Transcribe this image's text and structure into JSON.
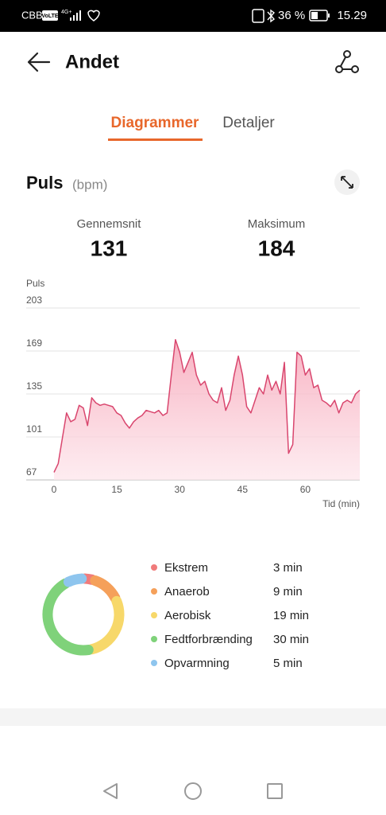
{
  "status_bar": {
    "carrier": "CBB",
    "volte": "VoLTE",
    "network": "4G+",
    "battery": "36 %",
    "time": "15.29"
  },
  "header": {
    "title": "Andet"
  },
  "tabs": [
    "Diagrammer",
    "Detaljer"
  ],
  "section": {
    "title": "Puls",
    "unit": "(bpm)"
  },
  "stats": [
    {
      "label": "Gennemsnit",
      "value": 131
    },
    {
      "label": "Maksimum",
      "value": 184
    }
  ],
  "chart_data": [
    {
      "type": "area",
      "y_label": "Puls",
      "x_label": "Tid (min)",
      "color": "#d9466e",
      "fill": "#f7a9bb",
      "x": [
        0,
        1,
        2,
        3,
        4,
        5,
        6,
        7,
        8,
        9,
        10,
        11,
        12,
        13,
        14,
        15,
        16,
        17,
        18,
        19,
        20,
        21,
        22,
        23,
        24,
        25,
        26,
        27,
        28,
        29,
        30,
        31,
        32,
        33,
        34,
        35,
        36,
        37,
        38,
        39,
        40,
        41,
        42,
        43,
        44,
        45,
        46,
        47,
        48,
        49,
        50,
        51,
        52,
        53,
        54,
        55,
        56,
        57,
        58,
        59,
        60,
        61,
        62,
        63,
        64,
        65,
        66,
        67,
        68,
        69,
        70,
        71,
        72,
        73
      ],
      "values": [
        73,
        80,
        100,
        120,
        113,
        115,
        126,
        124,
        110,
        132,
        128,
        126,
        127,
        126,
        125,
        120,
        118,
        112,
        108,
        113,
        116,
        118,
        122,
        121,
        120,
        122,
        118,
        120,
        150,
        178,
        168,
        152,
        160,
        168,
        150,
        142,
        145,
        135,
        130,
        128,
        140,
        122,
        130,
        150,
        165,
        150,
        125,
        120,
        130,
        140,
        135,
        150,
        138,
        145,
        135,
        160,
        88,
        95,
        168,
        165,
        150,
        155,
        140,
        142,
        130,
        128,
        125,
        130,
        120,
        128,
        130,
        128,
        135,
        138
      ],
      "xlim": [
        0,
        73
      ],
      "ylim": [
        67,
        203
      ],
      "xticks": [
        0,
        15,
        30,
        45,
        60
      ],
      "yticks": [
        67,
        101,
        135,
        169,
        203
      ],
      "grid": true
    },
    {
      "type": "donut",
      "categories": [
        "Ekstrem",
        "Anaerob",
        "Aerobisk",
        "Fedtforbrænding",
        "Opvarmning"
      ],
      "values": [
        3,
        9,
        19,
        30,
        5
      ],
      "value_labels": [
        "3 min",
        "9 min",
        "19 min",
        "30 min",
        "5 min"
      ],
      "colors": [
        "#f07b7b",
        "#f5a05a",
        "#f7d86a",
        "#7fd27a",
        "#8ec5ee"
      ]
    }
  ]
}
